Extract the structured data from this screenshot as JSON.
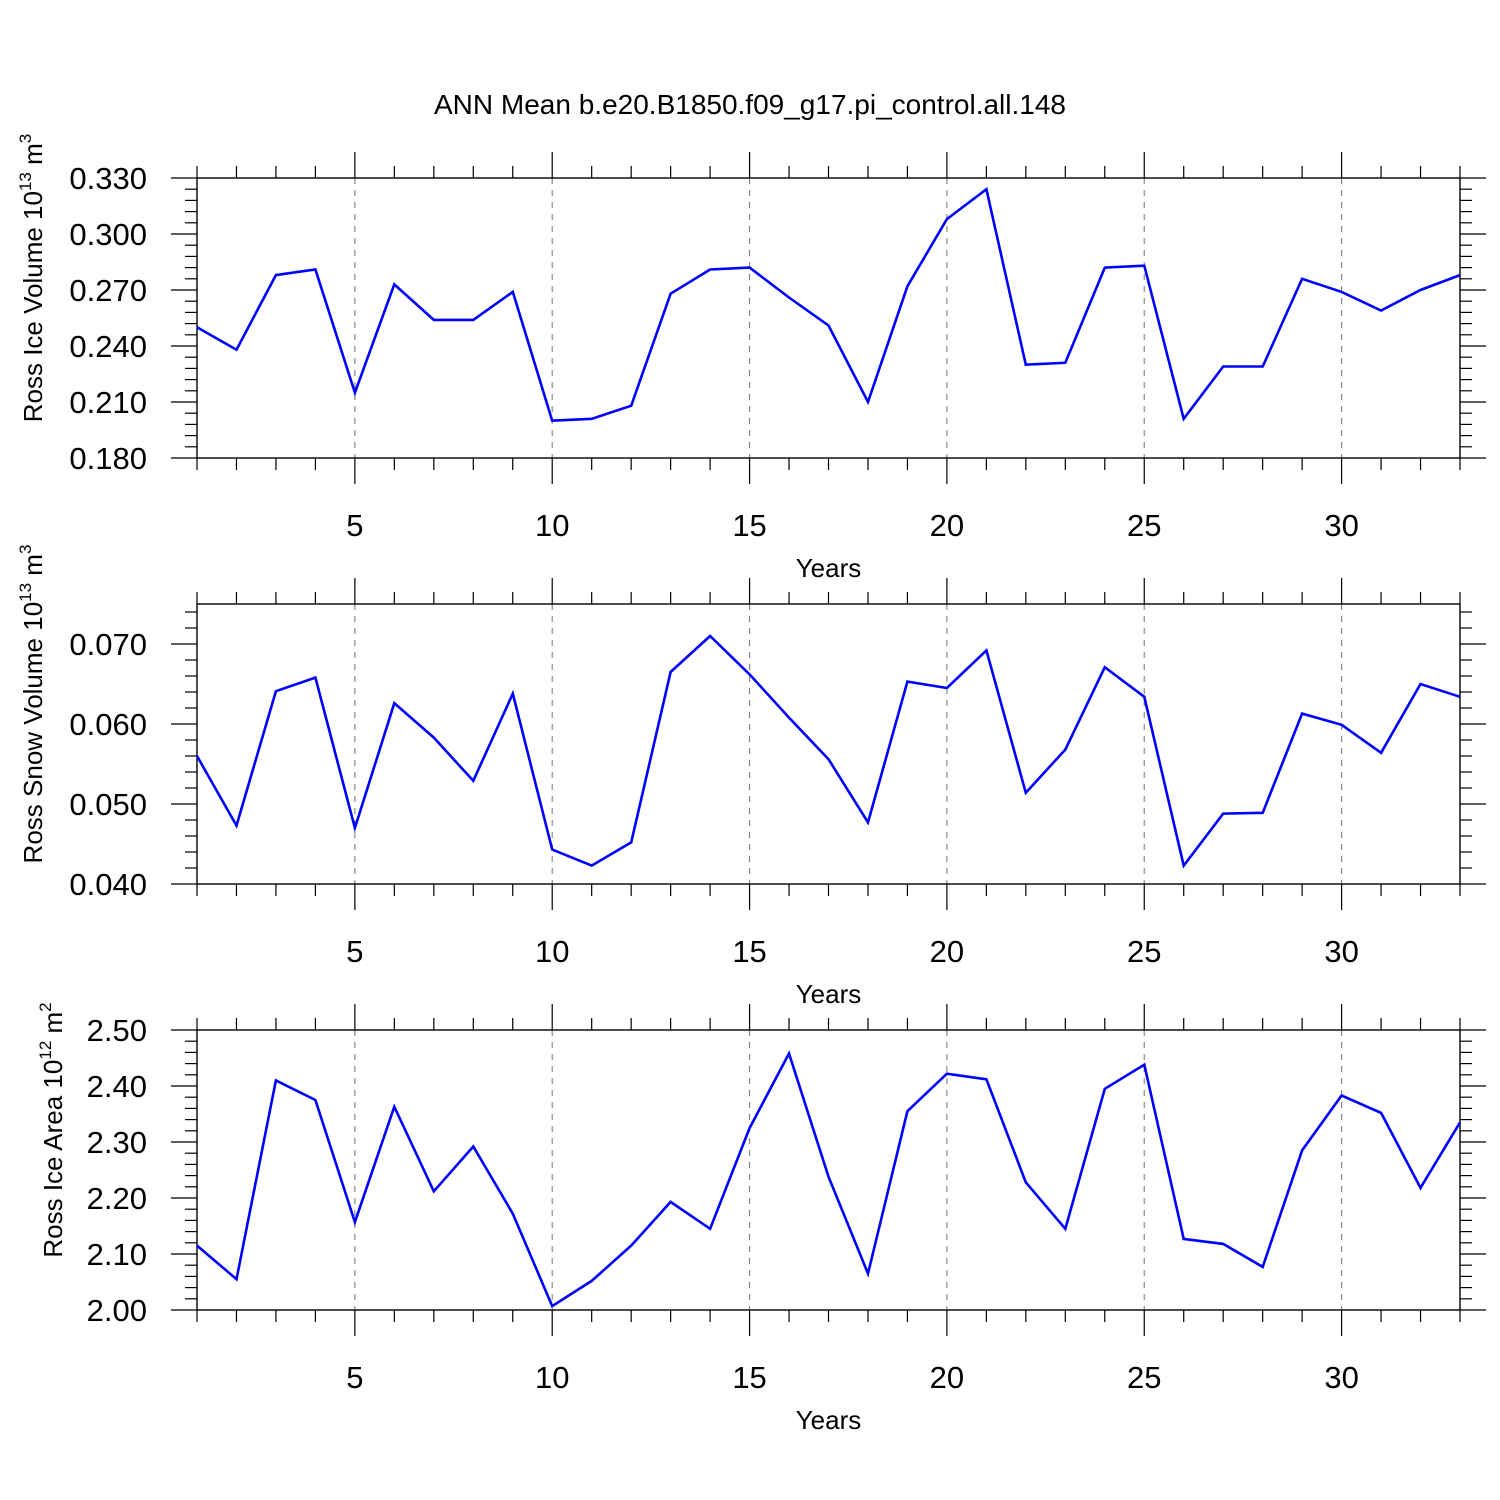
{
  "title": "ANN Mean b.e20.B1850.f09_g17.pi_control.all.148",
  "colors": {
    "line": "#0000ff",
    "axis": "#000000",
    "grid": "#888888"
  },
  "chart_data": [
    {
      "type": "line",
      "title": "ANN Mean b.e20.B1850.f09_g17.pi_control.all.148",
      "ylabel": {
        "base": "Ross Ice Volume 10",
        "sup": "13",
        "unit": "m",
        "unit_sup": "3"
      },
      "xlabel": "Years",
      "xlim": [
        1,
        33
      ],
      "ylim": [
        0.18,
        0.33
      ],
      "yticks": [
        "0.180",
        "0.210",
        "0.240",
        "0.270",
        "0.300",
        "0.330"
      ],
      "xticks": [
        "5",
        "10",
        "15",
        "20",
        "25",
        "30"
      ],
      "x": [
        1,
        2,
        3,
        4,
        5,
        6,
        7,
        8,
        9,
        10,
        11,
        12,
        13,
        14,
        15,
        16,
        17,
        18,
        19,
        20,
        21,
        22,
        23,
        24,
        25,
        26,
        27,
        28,
        29,
        30,
        31,
        32,
        33
      ],
      "series": [
        {
          "name": "Ross Ice Volume",
          "values": [
            0.25,
            0.238,
            0.278,
            0.281,
            0.215,
            0.273,
            0.254,
            0.254,
            0.269,
            0.2,
            0.201,
            0.208,
            0.268,
            0.281,
            0.282,
            0.266,
            0.251,
            0.21,
            0.272,
            0.308,
            0.324,
            0.23,
            0.231,
            0.282,
            0.283,
            0.201,
            0.229,
            0.229,
            0.276,
            0.269,
            0.259,
            0.27,
            0.278
          ]
        }
      ]
    },
    {
      "type": "line",
      "ylabel": {
        "base": "Ross Snow Volume 10",
        "sup": "13",
        "unit": "m",
        "unit_sup": "3"
      },
      "xlabel": "Years",
      "xlim": [
        1,
        33
      ],
      "ylim": [
        0.04,
        0.075
      ],
      "yticks": [
        "0.040",
        "0.050",
        "0.060",
        "0.070"
      ],
      "xticks": [
        "5",
        "10",
        "15",
        "20",
        "25",
        "30"
      ],
      "x": [
        1,
        2,
        3,
        4,
        5,
        6,
        7,
        8,
        9,
        10,
        11,
        12,
        13,
        14,
        15,
        16,
        17,
        18,
        19,
        20,
        21,
        22,
        23,
        24,
        25,
        26,
        27,
        28,
        29,
        30,
        31,
        32,
        33
      ],
      "series": [
        {
          "name": "Ross Snow Volume",
          "values": [
            0.056,
            0.0473,
            0.0641,
            0.0658,
            0.047,
            0.0626,
            0.0583,
            0.0529,
            0.0638,
            0.0443,
            0.0423,
            0.0452,
            0.0665,
            0.071,
            0.0662,
            0.0608,
            0.0556,
            0.0477,
            0.0653,
            0.0645,
            0.0692,
            0.0514,
            0.0568,
            0.0671,
            0.0634,
            0.0423,
            0.0488,
            0.0489,
            0.0613,
            0.0599,
            0.0564,
            0.065,
            0.0634
          ]
        }
      ]
    },
    {
      "type": "line",
      "ylabel": {
        "base": "Ross Ice Area 10",
        "sup": "12",
        "unit": "m",
        "unit_sup": "2"
      },
      "xlabel": "Years",
      "xlim": [
        1,
        33
      ],
      "ylim": [
        2.0,
        2.5
      ],
      "yticks": [
        "2.00",
        "2.10",
        "2.20",
        "2.30",
        "2.40",
        "2.50"
      ],
      "xticks": [
        "5",
        "10",
        "15",
        "20",
        "25",
        "30"
      ],
      "x": [
        1,
        2,
        3,
        4,
        5,
        6,
        7,
        8,
        9,
        10,
        11,
        12,
        13,
        14,
        15,
        16,
        17,
        18,
        19,
        20,
        21,
        22,
        23,
        24,
        25,
        26,
        27,
        28,
        29,
        30,
        31,
        32,
        33
      ],
      "series": [
        {
          "name": "Ross Ice Area",
          "values": [
            2.115,
            2.055,
            2.41,
            2.375,
            2.157,
            2.363,
            2.212,
            2.292,
            2.172,
            2.007,
            2.052,
            2.115,
            2.193,
            2.145,
            2.325,
            2.458,
            2.238,
            2.065,
            2.355,
            2.422,
            2.412,
            2.228,
            2.145,
            2.395,
            2.438,
            2.127,
            2.118,
            2.077,
            2.285,
            2.383,
            2.352,
            2.218,
            2.335
          ]
        }
      ]
    }
  ]
}
